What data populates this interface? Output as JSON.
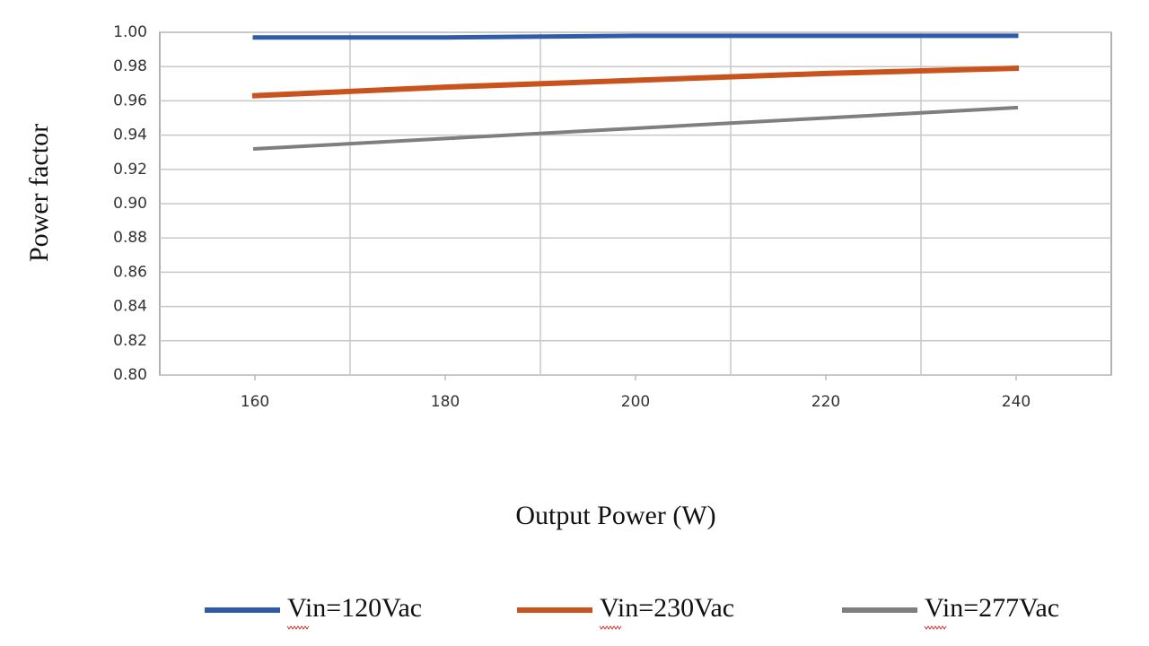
{
  "chart_data": {
    "type": "line",
    "y_label": "Power factor",
    "x_label": "Output Power (W)",
    "x": [
      160,
      180,
      200,
      220,
      240
    ],
    "series": [
      {
        "name": "Vin=120Vac",
        "color": "#2f5ba8",
        "values": [
          0.997,
          0.997,
          0.998,
          0.998,
          0.998
        ]
      },
      {
        "name": "Vin=230Vac",
        "color": "#c9521d",
        "values": [
          0.963,
          0.968,
          0.972,
          0.976,
          0.979
        ]
      },
      {
        "name": "Vin=277Vac",
        "color": "#7f7f7f",
        "values": [
          0.932,
          0.938,
          0.944,
          0.95,
          0.956
        ]
      }
    ],
    "xlim": [
      150,
      250
    ],
    "xticks": [
      160,
      180,
      200,
      220,
      240
    ],
    "x_grid_lines": [
      170,
      190,
      210,
      230
    ],
    "ylim": [
      0.8,
      1.0
    ],
    "yticks": [
      {
        "value": 0.8,
        "label": "0.80"
      },
      {
        "value": 0.82,
        "label": "0.82"
      },
      {
        "value": 0.84,
        "label": "0.84"
      },
      {
        "value": 0.86,
        "label": "0.86"
      },
      {
        "value": 0.88,
        "label": "0.88"
      },
      {
        "value": 0.9,
        "label": "0.90"
      },
      {
        "value": 0.92,
        "label": "0.92"
      },
      {
        "value": 0.94,
        "label": "0.94"
      },
      {
        "value": 0.96,
        "label": "0.96"
      },
      {
        "value": 0.98,
        "label": "0.98"
      },
      {
        "value": 1.0,
        "label": "1.00"
      }
    ],
    "grid": true,
    "legend": "bottom"
  }
}
